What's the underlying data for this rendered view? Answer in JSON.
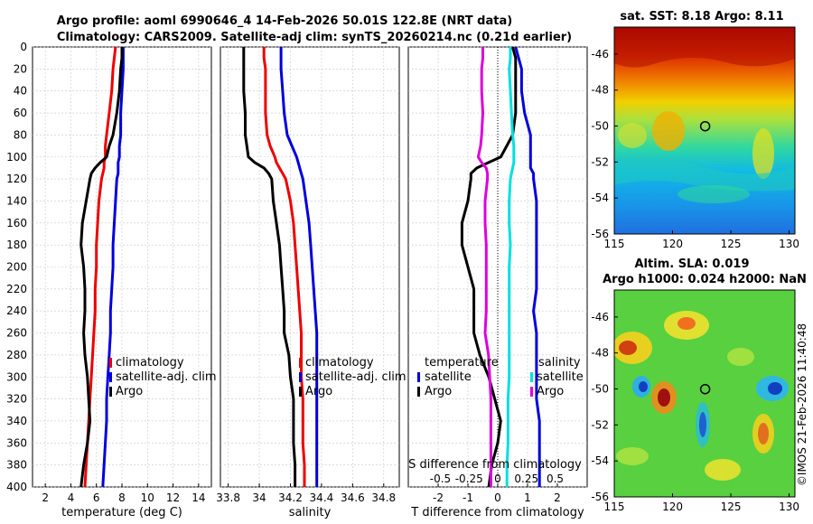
{
  "titles": {
    "line1": "Argo profile: aoml 6990646_4 14-Feb-2026 50.01S 122.8E (NRT data)",
    "line2": "Climatology: CARS2009. Satellite-adj clim: synTS_20260214.nc (0.21d earlier)",
    "sst": "sat. SST: 8.18 Argo: 8.11",
    "sla1": "Altim. SLA: 0.019",
    "sla2": "Argo h1000: 0.024 h2000: NaN",
    "stamp": "©IMOS 21-Feb-2026 11:40:48"
  },
  "colors": {
    "argo": "#000000",
    "clim": "#ee0000",
    "sat": "#0000dd",
    "sat_s": "#00e0e0",
    "sat_s_clim": "#dd00dd"
  },
  "depth_ticks": [
    "0",
    "20",
    "40",
    "60",
    "80",
    "100",
    "120",
    "140",
    "160",
    "180",
    "200",
    "220",
    "240",
    "260",
    "280",
    "300",
    "320",
    "340",
    "360",
    "380",
    "400"
  ],
  "legend": {
    "p1": [
      "climatology",
      "satellite-adj. clim",
      "Argo"
    ],
    "p2": [
      "climatology",
      "satellite-adj. clim",
      "Argo"
    ],
    "p3_left_head": "temperature",
    "p3_left": [
      "satellite",
      "Argo"
    ],
    "p3_right_head": "salinity",
    "p3_right": [
      "satellite",
      "Argo"
    ]
  },
  "s_axis": {
    "label": "S difference from climatology",
    "ticks": [
      "-0.5",
      "-0.25",
      "0",
      "0.25",
      "0.5"
    ]
  },
  "map_ticks": {
    "lon": [
      "115",
      "120",
      "125",
      "130"
    ],
    "lat": [
      "-46",
      "-48",
      "-50",
      "-52",
      "-54",
      "-56"
    ]
  },
  "chart_data": [
    {
      "type": "line",
      "title": "",
      "xlabel": "temperature (deg C)",
      "ylabel": "",
      "xlim": [
        1,
        15
      ],
      "ylim": [
        400,
        0
      ],
      "xticks": [
        "2",
        "4",
        "6",
        "8",
        "10",
        "12",
        "14"
      ],
      "depth": [
        0,
        10,
        20,
        40,
        60,
        80,
        90,
        100,
        105,
        110,
        115,
        120,
        140,
        160,
        180,
        200,
        220,
        240,
        260,
        280,
        300,
        320,
        340,
        360,
        380,
        400
      ],
      "series": [
        {
          "name": "climatology",
          "color": "#ee0000",
          "values": [
            7.5,
            7.4,
            7.3,
            7.2,
            7.0,
            6.8,
            6.7,
            6.7,
            6.6,
            6.6,
            6.5,
            6.4,
            6.2,
            6.1,
            6.0,
            6.0,
            5.9,
            5.9,
            5.8,
            5.7,
            5.6,
            5.5,
            5.4,
            5.3,
            5.2,
            5.1
          ]
        },
        {
          "name": "satellite-adj. clim",
          "color": "#0000dd",
          "values": [
            8.1,
            8.1,
            8.1,
            8.0,
            7.9,
            7.9,
            7.8,
            7.8,
            7.7,
            7.7,
            7.7,
            7.6,
            7.5,
            7.4,
            7.3,
            7.3,
            7.2,
            7.1,
            7.1,
            7.0,
            6.9,
            6.8,
            6.8,
            6.7,
            6.6,
            6.5
          ]
        },
        {
          "name": "Argo",
          "color": "#000000",
          "values": [
            8.0,
            8.0,
            7.9,
            7.8,
            7.6,
            7.3,
            7.0,
            6.8,
            6.3,
            5.9,
            5.6,
            5.5,
            5.2,
            4.9,
            4.8,
            5.0,
            5.1,
            5.1,
            5.0,
            5.1,
            5.3,
            5.4,
            5.5,
            5.3,
            5.0,
            4.8
          ]
        }
      ]
    },
    {
      "type": "line",
      "title": "",
      "xlabel": "salinity",
      "ylabel": "",
      "xlim": [
        33.75,
        34.9
      ],
      "ylim": [
        400,
        0
      ],
      "xticks": [
        "33.8",
        "34",
        "34.2",
        "34.4",
        "34.6",
        "34.8"
      ],
      "depth": [
        0,
        10,
        20,
        40,
        60,
        80,
        90,
        100,
        105,
        110,
        115,
        120,
        140,
        160,
        180,
        200,
        220,
        240,
        260,
        280,
        300,
        320,
        340,
        360,
        380,
        400
      ],
      "series": [
        {
          "name": "climatology",
          "color": "#ee0000",
          "values": [
            34.03,
            34.03,
            34.04,
            34.04,
            34.04,
            34.05,
            34.07,
            34.1,
            34.11,
            34.13,
            34.15,
            34.17,
            34.2,
            34.22,
            34.23,
            34.24,
            34.25,
            34.26,
            34.27,
            34.27,
            34.27,
            34.28,
            34.28,
            34.28,
            34.29,
            34.29
          ]
        },
        {
          "name": "satellite-adj. clim",
          "color": "#0000dd",
          "values": [
            34.14,
            34.14,
            34.14,
            34.15,
            34.16,
            34.18,
            34.21,
            34.24,
            34.25,
            34.26,
            34.27,
            34.28,
            34.3,
            34.32,
            34.33,
            34.34,
            34.35,
            34.36,
            34.37,
            34.37,
            34.37,
            34.37,
            34.37,
            34.37,
            34.37,
            34.37
          ]
        },
        {
          "name": "Argo",
          "color": "#000000",
          "values": [
            33.9,
            33.9,
            33.9,
            33.9,
            33.91,
            33.91,
            33.92,
            33.93,
            33.97,
            34.03,
            34.06,
            34.08,
            34.09,
            34.11,
            34.13,
            34.14,
            34.15,
            34.16,
            34.16,
            34.19,
            34.2,
            34.22,
            34.22,
            34.22,
            34.23,
            34.23
          ]
        }
      ]
    },
    {
      "type": "line",
      "title": "",
      "xlabel": "T difference from climatology",
      "ylabel": "",
      "xlim": [
        -3,
        3
      ],
      "ylim": [
        400,
        0
      ],
      "xticks": [
        "-2",
        "-1",
        "0",
        "1",
        "2"
      ],
      "depth": [
        0,
        10,
        20,
        40,
        60,
        80,
        90,
        100,
        105,
        110,
        115,
        120,
        140,
        160,
        180,
        200,
        220,
        240,
        260,
        280,
        300,
        320,
        340,
        360,
        380,
        400
      ],
      "series": [
        {
          "name": "temperature satellite",
          "color": "#0000dd",
          "values": [
            0.6,
            0.7,
            0.8,
            0.8,
            0.9,
            1.1,
            1.1,
            1.1,
            1.1,
            1.1,
            1.2,
            1.2,
            1.3,
            1.3,
            1.3,
            1.3,
            1.3,
            1.2,
            1.3,
            1.3,
            1.3,
            1.3,
            1.4,
            1.4,
            1.4,
            1.4
          ]
        },
        {
          "name": "temperature Argo",
          "color": "#000000",
          "values": [
            0.5,
            0.6,
            0.6,
            0.6,
            0.6,
            0.5,
            0.3,
            0.1,
            -0.3,
            -0.7,
            -0.9,
            -0.9,
            -1.0,
            -1.2,
            -1.2,
            -1.0,
            -0.8,
            -0.8,
            -0.8,
            -0.6,
            -0.3,
            -0.1,
            0.1,
            0.0,
            -0.2,
            -0.3
          ]
        },
        {
          "name": "salinity satellite",
          "color": "#00e0e0",
          "values": [
            0.11,
            0.11,
            0.1,
            0.11,
            0.12,
            0.13,
            0.14,
            0.14,
            0.14,
            0.13,
            0.12,
            0.11,
            0.1,
            0.1,
            0.11,
            0.1,
            0.1,
            0.1,
            0.1,
            0.1,
            0.1,
            0.09,
            0.09,
            0.09,
            0.08,
            0.08
          ]
        },
        {
          "name": "salinity Argo",
          "color": "#dd00dd",
          "values": [
            -0.13,
            -0.13,
            -0.14,
            -0.14,
            -0.13,
            -0.14,
            -0.15,
            -0.17,
            -0.14,
            -0.1,
            -0.09,
            -0.09,
            -0.11,
            -0.11,
            -0.1,
            -0.1,
            -0.1,
            -0.1,
            -0.11,
            -0.08,
            -0.07,
            -0.06,
            -0.06,
            -0.06,
            -0.06,
            -0.06
          ]
        }
      ]
    },
    {
      "type": "heatmap",
      "title": "sat. SST: 8.18 Argo: 8.11",
      "xlim": [
        115,
        130.5
      ],
      "ylim": [
        -56,
        -44.5
      ],
      "marker": {
        "lon": 122.8,
        "lat": -50.01
      }
    },
    {
      "type": "heatmap",
      "title": "Altim. SLA: 0.019",
      "xlim": [
        115,
        130.5
      ],
      "ylim": [
        -56,
        -44.5
      ],
      "marker": {
        "lon": 122.8,
        "lat": -50.01
      }
    }
  ]
}
